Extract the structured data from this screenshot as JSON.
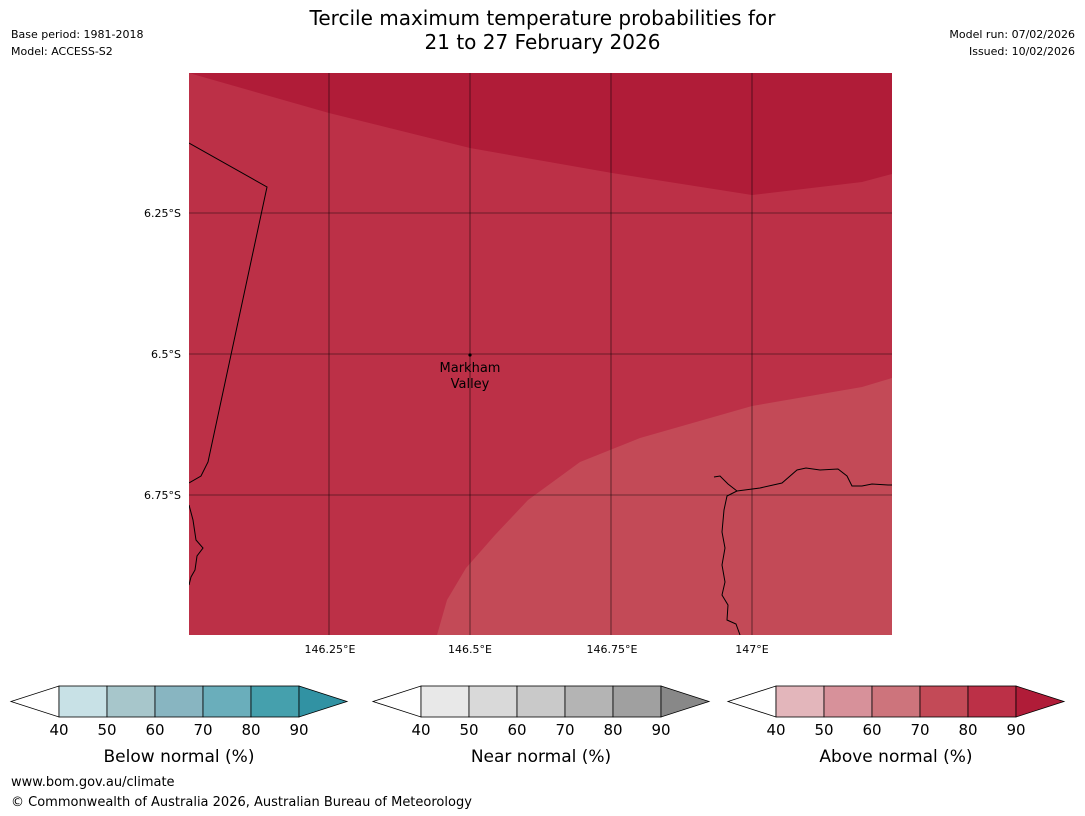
{
  "header": {
    "title_line1": "Tercile maximum temperature probabilities for",
    "title_line2": "21 to 27 February 2026",
    "base_period": "Base period: 1981-2018",
    "model": "Model: ACCESS-S2",
    "model_run": "Model run: 07/02/2026",
    "issued": "Issued: 10/02/2026"
  },
  "map": {
    "lat_labels": [
      "6.25°S",
      "6.5°S",
      "6.75°S"
    ],
    "lon_labels": [
      "146.25°E",
      "146.5°E",
      "146.75°E",
      "147°E"
    ],
    "place": {
      "name_line1": "Markham",
      "name_line2": "Valley"
    },
    "fill_colors": {
      "above_80_90": "#bc3047",
      "above_90_plus": "#b01c38",
      "above_70_80": "#c34a57"
    }
  },
  "legends": [
    {
      "title": "Below normal (%)",
      "ticks": [
        "40",
        "50",
        "60",
        "70",
        "80",
        "90"
      ],
      "colors": [
        "#ffffff",
        "#c8e1e6",
        "#a7c6cb",
        "#88b5c1",
        "#6aaebb",
        "#45a0ad",
        "#3192a3"
      ]
    },
    {
      "title": "Near normal (%)",
      "ticks": [
        "40",
        "50",
        "60",
        "70",
        "80",
        "90"
      ],
      "colors": [
        "#ffffff",
        "#e8e8e8",
        "#d9d9d9",
        "#c9c9c9",
        "#b4b4b4",
        "#a0a0a0",
        "#888888"
      ]
    },
    {
      "title": "Above normal (%)",
      "ticks": [
        "40",
        "50",
        "60",
        "70",
        "80",
        "90"
      ],
      "colors": [
        "#ffffff",
        "#e3b6bb",
        "#d7919a",
        "#cd747c",
        "#c34a57",
        "#bc3047",
        "#b01c38"
      ]
    }
  ],
  "footer": {
    "website": "www.bom.gov.au/climate",
    "copyright": "© Commonwealth of Australia 2026, Australian Bureau of Meteorology"
  }
}
